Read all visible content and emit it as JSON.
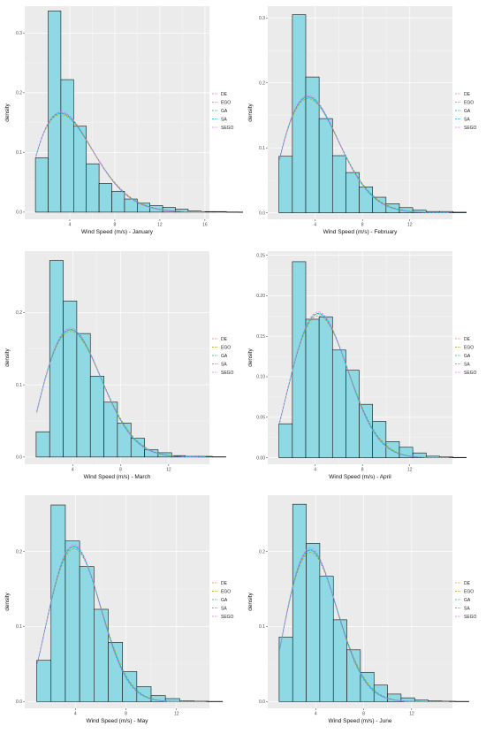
{
  "colors": {
    "panel_bg": "#ebebeb",
    "grid_major": "#ffffff",
    "bar_fill": "#8fd9e5",
    "bar_stroke": "#111111",
    "text": "#4d4d4d"
  },
  "legend_placement": "right",
  "chart_data": [
    {
      "type": "bar",
      "panel": "january",
      "xlabel": "Wind Speed (m/s) - January",
      "ylabel": "density",
      "xlim": [
        0,
        16.4
      ],
      "ylim": [
        -0.012,
        0.345
      ],
      "xticks": [
        {
          "v": 4,
          "l": "4"
        },
        {
          "v": 8,
          "l": "8"
        },
        {
          "v": 12,
          "l": "12"
        },
        {
          "v": 16,
          "l": "16"
        }
      ],
      "yticks": [
        {
          "v": 0,
          "l": "0.0"
        },
        {
          "v": 0.1,
          "l": "0.1"
        },
        {
          "v": 0.2,
          "l": "0.2"
        },
        {
          "v": 0.3,
          "l": "0.3"
        }
      ],
      "bin_start": 0.95,
      "bin_width": 1.13,
      "values": [
        0.091,
        0.337,
        0.222,
        0.144,
        0.081,
        0.048,
        0.035,
        0.022,
        0.015,
        0.011,
        0.008,
        0.005,
        0.002,
        0.001,
        0.001,
        0.0003,
        0.0002
      ],
      "curve_x_range": [
        1,
        16
      ],
      "series": [
        {
          "name": "DE",
          "color": "#f8766d",
          "fit": {
            "k": 1.85,
            "lambda": 4.9
          }
        },
        {
          "name": "EGO",
          "color": "#a3a500",
          "fit": {
            "k": 1.82,
            "lambda": 4.95
          }
        },
        {
          "name": "GA",
          "color": "#00bf7d",
          "fit": {
            "k": 1.84,
            "lambda": 4.92
          }
        },
        {
          "name": "SA",
          "color": "#00b0f6",
          "fit": {
            "k": 1.83,
            "lambda": 4.9
          }
        },
        {
          "name": "SEGO",
          "color": "#e76bf3",
          "fit": {
            "k": 1.86,
            "lambda": 4.88
          }
        }
      ]
    },
    {
      "type": "bar",
      "panel": "february",
      "xlabel": "Wind Speed (m/s) - February",
      "ylabel": "density",
      "xlim": [
        0,
        15.6
      ],
      "ylim": [
        -0.01,
        0.318
      ],
      "xticks": [
        {
          "v": 4,
          "l": "4"
        },
        {
          "v": 8,
          "l": "8"
        },
        {
          "v": 12,
          "l": "12"
        }
      ],
      "yticks": [
        {
          "v": 0,
          "l": "0.0"
        },
        {
          "v": 0.1,
          "l": "0.1"
        },
        {
          "v": 0.2,
          "l": "0.2"
        },
        {
          "v": 0.3,
          "l": "0.3"
        }
      ],
      "bin_start": 0.95,
      "bin_width": 1.13,
      "values": [
        0.087,
        0.305,
        0.209,
        0.145,
        0.088,
        0.062,
        0.04,
        0.024,
        0.014,
        0.008,
        0.004,
        0.002,
        0.002,
        0.001
      ],
      "curve_x_range": [
        1,
        15.3
      ],
      "series": [
        {
          "name": "DE",
          "color": "#f8766d",
          "fit": {
            "k": 2.0,
            "lambda": 4.8
          }
        },
        {
          "name": "EGO",
          "color": "#a3a500",
          "fit": {
            "k": 1.98,
            "lambda": 4.85
          }
        },
        {
          "name": "GA",
          "color": "#00bf7d",
          "fit": {
            "k": 2.01,
            "lambda": 4.82
          }
        },
        {
          "name": "SA",
          "color": "#00b0f6",
          "fit": {
            "k": 1.99,
            "lambda": 4.8
          }
        },
        {
          "name": "SEGO",
          "color": "#e76bf3",
          "fit": {
            "k": 2.02,
            "lambda": 4.78
          }
        }
      ]
    },
    {
      "type": "bar",
      "panel": "march",
      "xlabel": "Wind Speed (m/s) - March",
      "ylabel": "density",
      "xlim": [
        0,
        15.4
      ],
      "ylim": [
        -0.01,
        0.285
      ],
      "xticks": [
        {
          "v": 4,
          "l": "4"
        },
        {
          "v": 8,
          "l": "8"
        },
        {
          "v": 12,
          "l": "12"
        }
      ],
      "yticks": [
        {
          "v": 0,
          "l": "0.0"
        },
        {
          "v": 0.1,
          "l": "0.1"
        },
        {
          "v": 0.2,
          "l": "0.2"
        }
      ],
      "bin_start": 0.95,
      "bin_width": 1.13,
      "values": [
        0.035,
        0.272,
        0.216,
        0.171,
        0.112,
        0.076,
        0.047,
        0.026,
        0.01,
        0.006,
        0.002,
        0.001,
        0.001,
        0.0004
      ],
      "curve_x_range": [
        1,
        15.1
      ],
      "series": [
        {
          "name": "DE",
          "color": "#f8766d",
          "fit": {
            "k": 2.15,
            "lambda": 5.1
          }
        },
        {
          "name": "EGO",
          "color": "#a3a500",
          "fit": {
            "k": 2.13,
            "lambda": 5.15
          }
        },
        {
          "name": "GA",
          "color": "#00bf7d",
          "fit": {
            "k": 2.16,
            "lambda": 5.12
          }
        },
        {
          "name": "SA",
          "color": "#00b0f6",
          "fit": {
            "k": 2.14,
            "lambda": 5.1
          }
        },
        {
          "name": "SEGO",
          "color": "#e76bf3",
          "fit": {
            "k": 2.17,
            "lambda": 5.08
          }
        }
      ]
    },
    {
      "type": "bar",
      "panel": "april",
      "xlabel": "Wind Speed (m/s) - April",
      "ylabel": "density",
      "xlim": [
        0,
        15.6
      ],
      "ylim": [
        -0.008,
        0.255
      ],
      "xticks": [
        {
          "v": 4,
          "l": "4"
        },
        {
          "v": 8,
          "l": "8"
        },
        {
          "v": 12,
          "l": "12"
        }
      ],
      "yticks": [
        {
          "v": 0,
          "l": "0.00"
        },
        {
          "v": 0.05,
          "l": "0.05"
        },
        {
          "v": 0.1,
          "l": "0.10"
        },
        {
          "v": 0.15,
          "l": "0.15"
        },
        {
          "v": 0.2,
          "l": "0.20"
        },
        {
          "v": 0.25,
          "l": "0.25"
        }
      ],
      "bin_start": 0.95,
      "bin_width": 1.13,
      "values": [
        0.042,
        0.242,
        0.171,
        0.174,
        0.133,
        0.108,
        0.066,
        0.045,
        0.02,
        0.013,
        0.006,
        0.002,
        0.001,
        0.0005
      ],
      "curve_x_range": [
        1,
        15.3
      ],
      "series": [
        {
          "name": "DE",
          "color": "#f8766d",
          "fit": {
            "k": 2.35,
            "lambda": 5.4
          }
        },
        {
          "name": "EGO",
          "color": "#a3a500",
          "fit": {
            "k": 2.33,
            "lambda": 5.45
          }
        },
        {
          "name": "GA",
          "color": "#00bf7d",
          "fit": {
            "k": 2.36,
            "lambda": 5.42
          }
        },
        {
          "name": "SA",
          "color": "#00b0f6",
          "fit": {
            "k": 2.34,
            "lambda": 5.4
          }
        },
        {
          "name": "SEGO",
          "color": "#e76bf3",
          "fit": {
            "k": 2.37,
            "lambda": 5.38
          }
        }
      ]
    },
    {
      "type": "bar",
      "panel": "may",
      "xlabel": "Wind Speed (m/s) - May",
      "ylabel": "density",
      "xlim": [
        0,
        14.6
      ],
      "ylim": [
        -0.009,
        0.275
      ],
      "xticks": [
        {
          "v": 4,
          "l": "4"
        },
        {
          "v": 8,
          "l": "8"
        },
        {
          "v": 12,
          "l": "12"
        }
      ],
      "yticks": [
        {
          "v": 0,
          "l": "0.0"
        },
        {
          "v": 0.1,
          "l": "0.1"
        },
        {
          "v": 0.2,
          "l": "0.2"
        }
      ],
      "bin_start": 0.95,
      "bin_width": 1.13,
      "values": [
        0.055,
        0.262,
        0.214,
        0.18,
        0.123,
        0.079,
        0.04,
        0.02,
        0.008,
        0.004,
        0.001,
        0.0005,
        0.0003
      ],
      "curve_x_range": [
        1,
        14.3
      ],
      "series": [
        {
          "name": "DE",
          "color": "#f8766d",
          "fit": {
            "k": 2.45,
            "lambda": 4.8
          }
        },
        {
          "name": "EGO",
          "color": "#a3a500",
          "fit": {
            "k": 2.43,
            "lambda": 4.85
          }
        },
        {
          "name": "GA",
          "color": "#00bf7d",
          "fit": {
            "k": 2.46,
            "lambda": 4.82
          }
        },
        {
          "name": "SA",
          "color": "#00b0f6",
          "fit": {
            "k": 2.44,
            "lambda": 4.8
          }
        },
        {
          "name": "SEGO",
          "color": "#e76bf3",
          "fit": {
            "k": 2.47,
            "lambda": 4.78
          }
        }
      ]
    },
    {
      "type": "bar",
      "panel": "june",
      "xlabel": "Wind Speed (m/s) - June",
      "ylabel": "density",
      "xlim": [
        0,
        15.4
      ],
      "ylim": [
        -0.009,
        0.275
      ],
      "xticks": [
        {
          "v": 4,
          "l": "4"
        },
        {
          "v": 8,
          "l": "8"
        },
        {
          "v": 12,
          "l": "12"
        }
      ],
      "yticks": [
        {
          "v": 0,
          "l": "0.0"
        },
        {
          "v": 0.1,
          "l": "0.1"
        },
        {
          "v": 0.2,
          "l": "0.2"
        }
      ],
      "bin_start": 0.95,
      "bin_width": 1.13,
      "values": [
        0.086,
        0.263,
        0.211,
        0.167,
        0.109,
        0.069,
        0.039,
        0.022,
        0.01,
        0.005,
        0.002,
        0.001,
        0.0005,
        0.0003
      ],
      "curve_x_range": [
        1,
        15.1
      ],
      "series": [
        {
          "name": "DE",
          "color": "#f8766d",
          "fit": {
            "k": 2.25,
            "lambda": 4.6
          }
        },
        {
          "name": "EGO",
          "color": "#a3a500",
          "fit": {
            "k": 2.23,
            "lambda": 4.65
          }
        },
        {
          "name": "GA",
          "color": "#00bf7d",
          "fit": {
            "k": 2.26,
            "lambda": 4.62
          }
        },
        {
          "name": "SA",
          "color": "#00b0f6",
          "fit": {
            "k": 2.24,
            "lambda": 4.6
          }
        },
        {
          "name": "SEGO",
          "color": "#e76bf3",
          "fit": {
            "k": 2.27,
            "lambda": 4.58
          }
        }
      ]
    }
  ]
}
